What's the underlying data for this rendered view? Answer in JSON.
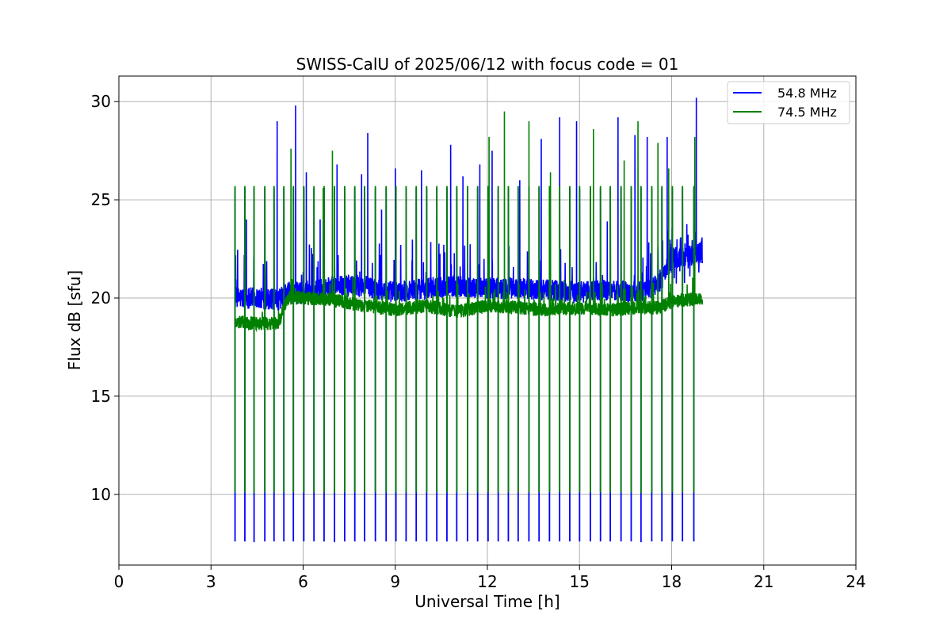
{
  "chart_data": {
    "type": "line",
    "title": "SWISS-CalU of 2025/06/12 with focus code = 01",
    "xlabel": "Universal Time [h]",
    "ylabel": "Flux dB [sfu]",
    "xlim": [
      0,
      24
    ],
    "ylim": [
      6.4,
      31.3
    ],
    "xticks": [
      0,
      3,
      6,
      9,
      12,
      15,
      18,
      21,
      24
    ],
    "yticks": [
      10,
      15,
      20,
      25,
      30
    ],
    "grid": true,
    "legend_position": "top-right",
    "calibration_times": [
      3.78,
      4.1,
      4.4,
      4.75,
      5.05,
      5.37,
      5.68,
      6.02,
      6.35,
      6.68,
      7.02,
      7.35,
      7.68,
      8.0,
      8.35,
      8.7,
      9.02,
      9.35,
      9.68,
      10.02,
      10.35,
      10.68,
      11.0,
      11.35,
      11.68,
      12.02,
      12.35,
      12.68,
      13.0,
      13.35,
      13.68,
      14.02,
      14.35,
      14.68,
      15.0,
      15.35,
      15.68,
      16.0,
      16.35,
      16.68,
      17.0,
      17.35,
      17.68,
      18.02,
      18.35,
      18.72
    ],
    "series": [
      {
        "name": "54.8 MHz",
        "color": "#0000ff",
        "time_range": [
          3.78,
          19.0
        ],
        "baseline": [
          [
            3.8,
            20.0
          ],
          [
            4.5,
            20.0
          ],
          [
            5.2,
            19.9
          ],
          [
            5.5,
            20.3
          ],
          [
            6.0,
            20.2
          ],
          [
            7.0,
            20.6
          ],
          [
            8.0,
            20.6
          ],
          [
            9.0,
            20.3
          ],
          [
            10.0,
            20.5
          ],
          [
            11.0,
            20.6
          ],
          [
            12.0,
            20.5
          ],
          [
            13.0,
            20.5
          ],
          [
            14.0,
            20.4
          ],
          [
            15.0,
            20.3
          ],
          [
            16.0,
            20.4
          ],
          [
            17.0,
            20.3
          ],
          [
            17.6,
            20.7
          ],
          [
            18.0,
            22.0
          ],
          [
            19.0,
            22.3
          ]
        ],
        "calibration_peak": 25.6,
        "calibration_low": 7.6,
        "spikes": [
          [
            4.15,
            24.0
          ],
          [
            5.15,
            29.0
          ],
          [
            5.75,
            29.8
          ],
          [
            6.1,
            26.4
          ],
          [
            6.55,
            24.0
          ],
          [
            7.1,
            26.8
          ],
          [
            7.9,
            26.3
          ],
          [
            8.1,
            28.4
          ],
          [
            8.55,
            24.5
          ],
          [
            9.0,
            26.6
          ],
          [
            9.85,
            26.5
          ],
          [
            10.8,
            27.8
          ],
          [
            11.2,
            26.2
          ],
          [
            11.75,
            26.8
          ],
          [
            12.15,
            27.5
          ],
          [
            13.05,
            26.0
          ],
          [
            13.75,
            28.1
          ],
          [
            14.35,
            29.2
          ],
          [
            14.9,
            29.0
          ],
          [
            15.9,
            23.9
          ],
          [
            16.25,
            29.2
          ],
          [
            16.8,
            28.3
          ],
          [
            17.2,
            28.2
          ],
          [
            17.85,
            28.2
          ],
          [
            18.8,
            30.2
          ]
        ]
      },
      {
        "name": "74.5 MHz",
        "color": "#008000",
        "time_range": [
          3.78,
          19.0
        ],
        "baseline": [
          [
            3.8,
            18.8
          ],
          [
            4.5,
            18.7
          ],
          [
            5.2,
            18.7
          ],
          [
            5.5,
            20.0
          ],
          [
            6.0,
            20.0
          ],
          [
            7.0,
            19.9
          ],
          [
            8.0,
            19.6
          ],
          [
            9.0,
            19.4
          ],
          [
            10.0,
            19.6
          ],
          [
            11.0,
            19.3
          ],
          [
            12.0,
            19.6
          ],
          [
            13.0,
            19.5
          ],
          [
            14.0,
            19.4
          ],
          [
            15.0,
            19.5
          ],
          [
            16.0,
            19.4
          ],
          [
            17.0,
            19.5
          ],
          [
            17.6,
            19.5
          ],
          [
            18.0,
            19.8
          ],
          [
            19.0,
            20.0
          ]
        ],
        "calibration_peak": 25.7,
        "calibration_low": 10.1,
        "spikes": [
          [
            5.6,
            27.6
          ],
          [
            6.65,
            25.6
          ],
          [
            6.95,
            27.5
          ],
          [
            8.35,
            16.5
          ],
          [
            12.05,
            28.2
          ],
          [
            12.55,
            29.5
          ],
          [
            13.35,
            29.0
          ],
          [
            14.05,
            26.4
          ],
          [
            15.45,
            28.6
          ],
          [
            16.45,
            27.0
          ],
          [
            16.9,
            29.0
          ],
          [
            17.55,
            27.9
          ],
          [
            17.9,
            26.6
          ],
          [
            18.75,
            28.2
          ]
        ]
      }
    ]
  }
}
